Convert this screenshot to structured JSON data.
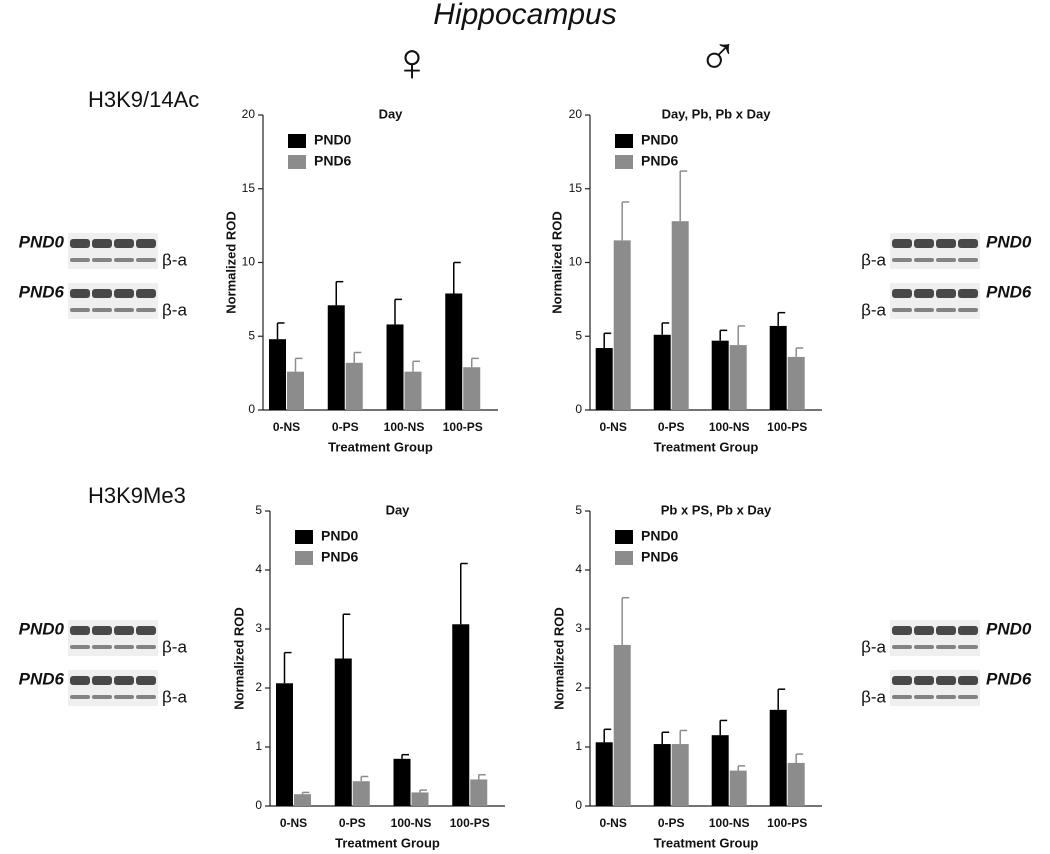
{
  "figure": {
    "title": "Hippocampus",
    "female": "♀",
    "male": "♂",
    "rows": [
      "H3K9/14Ac",
      "H3K9Me3"
    ],
    "blots": [
      {
        "labels": [
          "PND0",
          "β-a",
          "PND6",
          "β-a"
        ]
      },
      {
        "labels": [
          "PND0",
          "β-a",
          "PND6",
          "β-a"
        ]
      },
      {
        "labels": [
          "PND0",
          "β-a",
          "PND6",
          "β-a"
        ]
      },
      {
        "labels": [
          "PND0",
          "β-a",
          "PND6",
          "β-a"
        ]
      }
    ]
  },
  "chart_data": [
    {
      "type": "bar",
      "title": "Day",
      "xlabel": "Treatment Group",
      "ylabel": "Normalized ROD",
      "categories": [
        "0-NS",
        "0-PS",
        "100-NS",
        "100-PS"
      ],
      "series": [
        {
          "name": "PND0",
          "color": "#000000",
          "values": [
            4.8,
            7.1,
            5.8,
            7.9
          ],
          "errors": [
            1.1,
            1.6,
            1.7,
            2.1
          ]
        },
        {
          "name": "PND6",
          "color": "#8c8c8c",
          "values": [
            2.6,
            3.2,
            2.6,
            2.9
          ],
          "errors": [
            0.9,
            0.7,
            0.7,
            0.6
          ]
        }
      ],
      "ylim": [
        0,
        20
      ],
      "yticks": [
        0,
        5,
        10,
        15,
        20
      ],
      "legend": "upper left"
    },
    {
      "type": "bar",
      "title": "Day, Pb, Pb x Day",
      "xlabel": "Treatment Group",
      "ylabel": "Normalized ROD",
      "categories": [
        "0-NS",
        "0-PS",
        "100-NS",
        "100-PS"
      ],
      "series": [
        {
          "name": "PND0",
          "color": "#000000",
          "values": [
            4.2,
            5.1,
            4.7,
            5.7
          ],
          "errors": [
            1.0,
            0.8,
            0.7,
            0.9
          ]
        },
        {
          "name": "PND6",
          "color": "#8c8c8c",
          "values": [
            11.5,
            12.8,
            4.4,
            3.6
          ],
          "errors": [
            2.6,
            3.4,
            1.3,
            0.6
          ]
        }
      ],
      "ylim": [
        0,
        20
      ],
      "yticks": [
        0,
        5,
        10,
        15,
        20
      ],
      "legend": "upper left"
    },
    {
      "type": "bar",
      "title": "Day",
      "xlabel": "Treatment Group",
      "ylabel": "Normalized ROD",
      "categories": [
        "0-NS",
        "0-PS",
        "100-NS",
        "100-PS"
      ],
      "series": [
        {
          "name": "PND0",
          "color": "#000000",
          "values": [
            2.08,
            2.5,
            0.8,
            3.08
          ],
          "errors": [
            0.52,
            0.75,
            0.07,
            1.03
          ]
        },
        {
          "name": "PND6",
          "color": "#8c8c8c",
          "values": [
            0.2,
            0.42,
            0.23,
            0.45
          ],
          "errors": [
            0.03,
            0.08,
            0.04,
            0.08
          ]
        }
      ],
      "ylim": [
        0,
        5
      ],
      "yticks": [
        0,
        1,
        2,
        3,
        4,
        5
      ],
      "legend": "upper left"
    },
    {
      "type": "bar",
      "title": "Pb x PS, Pb x Day",
      "xlabel": "Treatment Group",
      "ylabel": "Normalized ROD",
      "categories": [
        "0-NS",
        "0-PS",
        "100-NS",
        "100-PS"
      ],
      "series": [
        {
          "name": "PND0",
          "color": "#000000",
          "values": [
            1.08,
            1.05,
            1.2,
            1.63
          ],
          "errors": [
            0.22,
            0.2,
            0.25,
            0.35
          ]
        },
        {
          "name": "PND6",
          "color": "#8c8c8c",
          "values": [
            2.73,
            1.05,
            0.6,
            0.73
          ],
          "errors": [
            0.8,
            0.23,
            0.08,
            0.15
          ]
        }
      ],
      "ylim": [
        0,
        5
      ],
      "yticks": [
        0,
        1,
        2,
        3,
        4,
        5
      ],
      "legend": "upper left"
    }
  ]
}
